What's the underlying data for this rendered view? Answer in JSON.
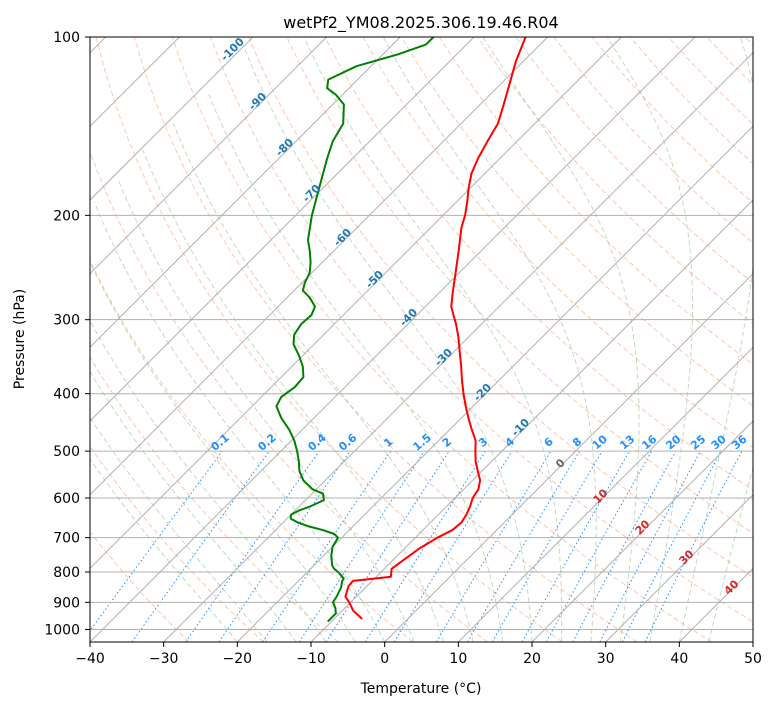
{
  "chart_data": {
    "type": "line",
    "subtype": "skew-t log-p diagram",
    "title": "wetPf2_YM08.2025.306.19.46.R04",
    "xlabel": "Temperature (°C)",
    "ylabel": "Pressure (hPa)",
    "xlim": [
      -40,
      50
    ],
    "ylim": [
      1050,
      100
    ],
    "yscale": "log",
    "xticks": [
      -40,
      -30,
      -20,
      -10,
      0,
      10,
      20,
      30,
      40,
      50
    ],
    "yticks": [
      100,
      200,
      300,
      400,
      500,
      600,
      700,
      800,
      900,
      1000
    ],
    "grid": true,
    "legend": "none",
    "colors": {
      "temperature": "#ff0000",
      "dewpoint": "#008000",
      "isotherms": "#b0b0b0",
      "dry_adiabats": "#ffa07a",
      "moist_adiabats": "#8fbc8f",
      "mixing_ratio": "#1e90ff",
      "theta_e_labels": "#1f77b4",
      "theta_labels": "#d62728"
    },
    "series": [
      {
        "points": [
          [
            960,
            -6.2
          ],
          [
            930,
            -8.5
          ],
          [
            900,
            -10.2
          ],
          [
            880,
            -11.5
          ],
          [
            845,
            -12.5
          ],
          [
            828,
            -12.6
          ],
          [
            815,
            -8
          ],
          [
            790,
            -9
          ],
          [
            760,
            -8.5
          ],
          [
            730,
            -8
          ],
          [
            700,
            -7
          ],
          [
            680,
            -6
          ],
          [
            660,
            -5.8
          ],
          [
            640,
            -6.2
          ],
          [
            620,
            -6.8
          ],
          [
            600,
            -7.6
          ],
          [
            580,
            -8
          ],
          [
            560,
            -9
          ],
          [
            540,
            -10.6
          ],
          [
            520,
            -12.2
          ],
          [
            500,
            -13.6
          ],
          [
            480,
            -15
          ],
          [
            460,
            -17
          ],
          [
            440,
            -19
          ],
          [
            420,
            -21
          ],
          [
            400,
            -23
          ],
          [
            380,
            -25
          ],
          [
            360,
            -27
          ],
          [
            340,
            -29.2
          ],
          [
            320,
            -31.5
          ],
          [
            305,
            -33.5
          ],
          [
            295,
            -35
          ],
          [
            285,
            -36.5
          ],
          [
            270,
            -38.2
          ],
          [
            250,
            -40.5
          ],
          [
            230,
            -43
          ],
          [
            210,
            -45.8
          ],
          [
            200,
            -47
          ],
          [
            190,
            -48.5
          ],
          [
            180,
            -50.2
          ],
          [
            170,
            -51.8
          ],
          [
            160,
            -53
          ],
          [
            150,
            -54
          ],
          [
            140,
            -55
          ],
          [
            130,
            -56.8
          ],
          [
            120,
            -58.8
          ],
          [
            110,
            -61
          ],
          [
            100,
            -63
          ]
        ]
      },
      {
        "points": [
          [
            970,
            -10.5
          ],
          [
            940,
            -10.5
          ],
          [
            920,
            -11.3
          ],
          [
            900,
            -12.4
          ],
          [
            880,
            -12.7
          ],
          [
            850,
            -13.3
          ],
          [
            830,
            -14
          ],
          [
            820,
            -14.2
          ],
          [
            810,
            -15
          ],
          [
            800,
            -15.8
          ],
          [
            790,
            -16.8
          ],
          [
            780,
            -17.5
          ],
          [
            770,
            -18
          ],
          [
            760,
            -18.5
          ],
          [
            750,
            -19
          ],
          [
            740,
            -19.4
          ],
          [
            725,
            -20
          ],
          [
            700,
            -20.5
          ],
          [
            690,
            -21.5
          ],
          [
            680,
            -23.5
          ],
          [
            670,
            -26
          ],
          [
            660,
            -28
          ],
          [
            650,
            -29.5
          ],
          [
            640,
            -30
          ],
          [
            630,
            -29.5
          ],
          [
            620,
            -28.5
          ],
          [
            605,
            -27.5
          ],
          [
            590,
            -28.5
          ],
          [
            580,
            -30.5
          ],
          [
            560,
            -33
          ],
          [
            540,
            -34.8
          ],
          [
            520,
            -36.2
          ],
          [
            500,
            -37.8
          ],
          [
            480,
            -39.6
          ],
          [
            460,
            -41.8
          ],
          [
            440,
            -44.4
          ],
          [
            420,
            -46.7
          ],
          [
            405,
            -47.3
          ],
          [
            390,
            -46.8
          ],
          [
            375,
            -47
          ],
          [
            360,
            -48.5
          ],
          [
            345,
            -50.5
          ],
          [
            330,
            -52.8
          ],
          [
            318,
            -54
          ],
          [
            305,
            -54.5
          ],
          [
            295,
            -54.3
          ],
          [
            285,
            -55
          ],
          [
            275,
            -57
          ],
          [
            268,
            -58.8
          ],
          [
            260,
            -59.6
          ],
          [
            250,
            -60.3
          ],
          [
            240,
            -61.6
          ],
          [
            230,
            -63.2
          ],
          [
            220,
            -65
          ],
          [
            200,
            -67.8
          ],
          [
            180,
            -70.5
          ],
          [
            160,
            -73.5
          ],
          [
            150,
            -75
          ],
          [
            140,
            -76
          ],
          [
            130,
            -78.5
          ],
          [
            125,
            -81
          ],
          [
            122,
            -83
          ],
          [
            118,
            -84
          ],
          [
            112,
            -82
          ],
          [
            107,
            -78
          ],
          [
            103,
            -75.5
          ],
          [
            100,
            -75.5
          ]
        ]
      }
    ],
    "theta_e_labels": [
      "-100",
      "-90",
      "-80",
      "-70",
      "-60",
      "-50",
      "-40",
      "-30",
      "-20",
      "-10"
    ],
    "theta_labels": [
      "0",
      "10",
      "20",
      "30",
      "40"
    ],
    "mixing_ratio_labels": [
      "0.1",
      "0.2",
      "0.4",
      "0.6",
      "1",
      "1.5",
      "2",
      "3",
      "4",
      "6",
      "8",
      "10",
      "13",
      "16",
      "20",
      "25",
      "30",
      "36"
    ]
  }
}
